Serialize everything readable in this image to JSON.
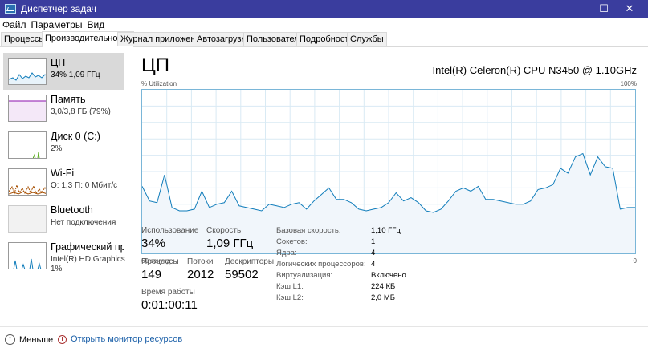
{
  "window": {
    "title": "Диспетчер задач"
  },
  "menu": [
    "Файл",
    "Параметры",
    "Вид"
  ],
  "tabs": [
    {
      "label": "Процессы",
      "active": false
    },
    {
      "label": "Производительность",
      "active": true
    },
    {
      "label": "Журнал приложений",
      "active": false
    },
    {
      "label": "Автозагрузка",
      "active": false
    },
    {
      "label": "Пользователи",
      "active": false
    },
    {
      "label": "Подробности",
      "active": false
    },
    {
      "label": "Службы",
      "active": false
    }
  ],
  "sidebar": [
    {
      "name": "ЦП",
      "sub": "34% 1,09 ГГц",
      "color": "#117dbb",
      "fill": "#e8f3fa",
      "selected": true
    },
    {
      "name": "Память",
      "sub": "3,0/3,8 ГБ (79%)",
      "color": "#8b12ae",
      "fill": "#f4e8f8",
      "selected": false
    },
    {
      "name": "Диск 0 (C:)",
      "sub": "2%",
      "color": "#4da60c",
      "fill": "#eef7e6",
      "selected": false
    },
    {
      "name": "Wi-Fi",
      "sub": "О: 1,3 П: 0 Мбит/с",
      "color": "#a74f01",
      "fill": "#f8efe6",
      "selected": false
    },
    {
      "name": "Bluetooth",
      "sub": "Нет подключения",
      "color": "#999999",
      "fill": "#f2f2f2",
      "selected": false
    },
    {
      "name": "Графический процессор",
      "sub": "Intel(R) HD Graphics",
      "sub2": "1%",
      "color": "#117dbb",
      "fill": "#e8f3fa",
      "selected": false
    }
  ],
  "main": {
    "title": "ЦП",
    "model": "Intel(R) Celeron(R) CPU N3450 @ 1.10GHz",
    "graph_top_left": "% Utilization",
    "graph_top_right": "100%",
    "graph_bottom_left": "60 секунд",
    "graph_bottom_right": "0",
    "stats": {
      "usage_label": "Использование",
      "usage_value": "34%",
      "speed_label": "Скорость",
      "speed_value": "1,09 ГГц",
      "processes_label": "Процессы",
      "processes_value": "149",
      "threads_label": "Потоки",
      "threads_value": "2012",
      "handles_label": "Дескрипторы",
      "handles_value": "59502",
      "uptime_label": "Время работы",
      "uptime_value": "0:01:00:11"
    },
    "details": [
      {
        "label": "Базовая скорость:",
        "value": "1,10 ГГц"
      },
      {
        "label": "Сокетов:",
        "value": "1"
      },
      {
        "label": "Ядра:",
        "value": "4"
      },
      {
        "label": "Логических процессоров:",
        "value": "4"
      },
      {
        "label": "Виртуализация:",
        "value": "Включено"
      },
      {
        "label": "Кэш L1:",
        "value": "224 КБ"
      },
      {
        "label": "Кэш L2:",
        "value": "2,0 МБ"
      }
    ]
  },
  "cpu_history": [
    41,
    32,
    31,
    48,
    28,
    26,
    26,
    27,
    38,
    28,
    30,
    31,
    38,
    29,
    28,
    27,
    26,
    30,
    29,
    28,
    30,
    31,
    27,
    32,
    36,
    40,
    33,
    33,
    31,
    27,
    26,
    27,
    28,
    31,
    37,
    32,
    34,
    31,
    26,
    25,
    27,
    32,
    38,
    40,
    38,
    41,
    33,
    33,
    32,
    31,
    30,
    30,
    32,
    39,
    40,
    42,
    52,
    49,
    59,
    61,
    48,
    59,
    53,
    52,
    27,
    28,
    28
  ],
  "footer": {
    "fewer": "Меньше",
    "resmon": "Открыть монитор ресурсов"
  }
}
